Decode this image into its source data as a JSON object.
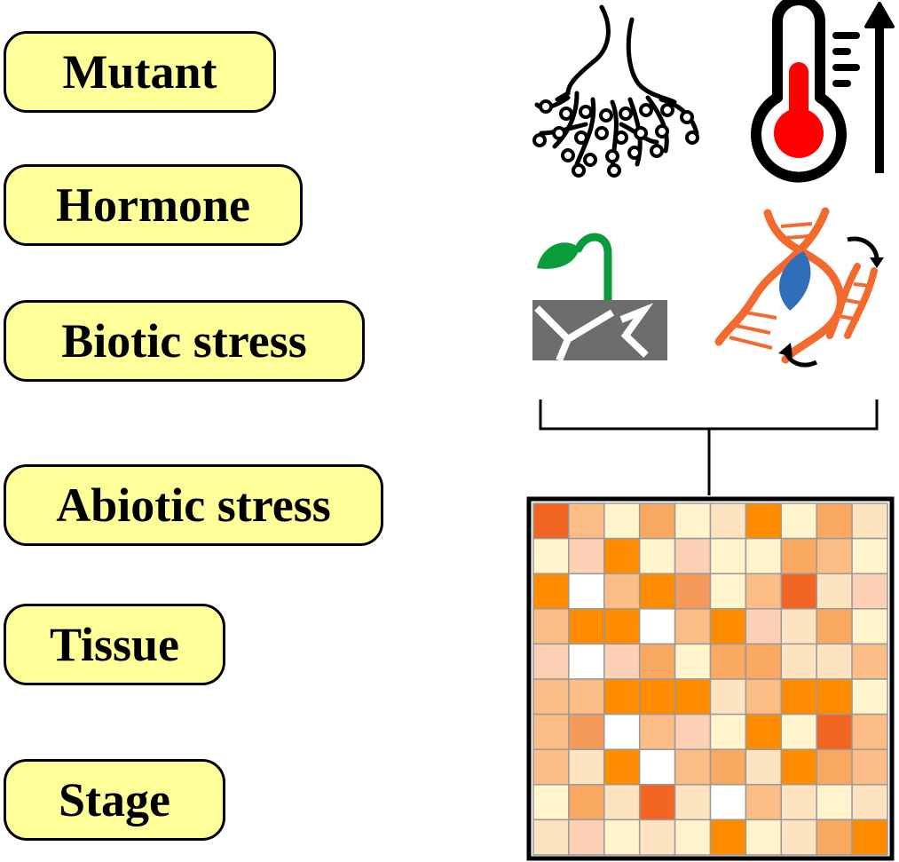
{
  "categories": [
    {
      "id": "mutant",
      "label": "Mutant"
    },
    {
      "id": "hormone",
      "label": "Hormone"
    },
    {
      "id": "biotic",
      "label": "Biotic stress"
    },
    {
      "id": "abiotic",
      "label": "Abiotic stress"
    },
    {
      "id": "tissue",
      "label": "Tissue"
    },
    {
      "id": "stage",
      "label": "Stage"
    }
  ],
  "icons": [
    {
      "name": "root-icon"
    },
    {
      "name": "thermometer-icon"
    },
    {
      "name": "seedling-drought-icon"
    },
    {
      "name": "dna-mutation-icon"
    }
  ],
  "colors": {
    "pill_fill": "#ffff99",
    "thermometer_red": "#ff0000",
    "seedling_green": "#0a9b3a",
    "soil_gray": "#6d6d6d",
    "dna_orange": "#f26a2e",
    "dna_blue": "#2f6eb8",
    "heatmap_palette": [
      "#ffffff",
      "#fff4cc",
      "#fde3bf",
      "#fcd0b4",
      "#fbbc86",
      "#f8a860",
      "#f49a5a",
      "#ff8c00",
      "#f26522"
    ]
  },
  "heatmap": {
    "rows": 10,
    "cols": 10,
    "levels": [
      [
        8,
        4,
        1,
        5,
        1,
        2,
        7,
        1,
        5,
        2
      ],
      [
        1,
        3,
        7,
        1,
        3,
        1,
        1,
        5,
        4,
        1
      ],
      [
        7,
        0,
        4,
        7,
        6,
        1,
        4,
        8,
        2,
        3
      ],
      [
        4,
        7,
        7,
        0,
        4,
        7,
        3,
        2,
        5,
        1
      ],
      [
        3,
        0,
        3,
        5,
        1,
        5,
        5,
        2,
        2,
        4
      ],
      [
        4,
        4,
        7,
        7,
        7,
        2,
        4,
        7,
        7,
        1
      ],
      [
        4,
        6,
        0,
        4,
        3,
        1,
        7,
        1,
        8,
        4
      ],
      [
        4,
        2,
        7,
        0,
        4,
        5,
        2,
        7,
        5,
        4
      ],
      [
        1,
        5,
        2,
        8,
        2,
        0,
        4,
        2,
        1,
        2
      ],
      [
        2,
        3,
        1,
        2,
        1,
        7,
        1,
        2,
        5,
        7
      ]
    ]
  }
}
